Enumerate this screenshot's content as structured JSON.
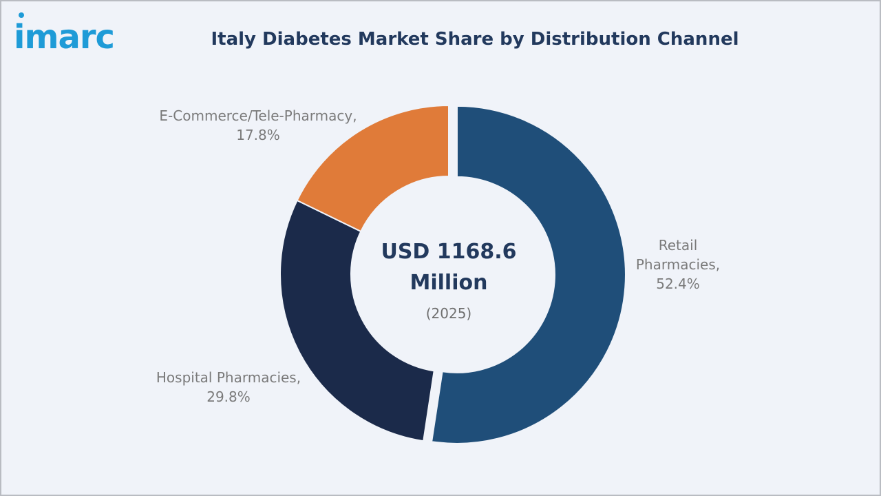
{
  "brand": {
    "logo_text": "imarc",
    "accent_color": "#1e9bd7"
  },
  "chart_data": {
    "type": "pie",
    "title": "Italy Diabetes Market Share by Distribution Channel",
    "center_value": "USD 1168.6 Million",
    "center_value_lines": [
      "USD 1168.6",
      "Million"
    ],
    "center_subtitle": "(2025)",
    "unit": "%",
    "slices": [
      {
        "name": "Retail Pharmacies",
        "label_lines": [
          "Retail",
          "Pharmacies,",
          "52.4%"
        ],
        "value": 52.4,
        "color": "#1f4e79"
      },
      {
        "name": "Hospital Pharmacies",
        "label_lines": [
          "Hospital Pharmacies,",
          "29.8%"
        ],
        "value": 29.8,
        "color": "#1b2a4a"
      },
      {
        "name": "E-Commerce/Tele-Pharmacy",
        "label_lines": [
          "E-Commerce/Tele-Pharmacy,",
          "17.8%"
        ],
        "value": 17.8,
        "color": "#e07b39"
      }
    ]
  }
}
